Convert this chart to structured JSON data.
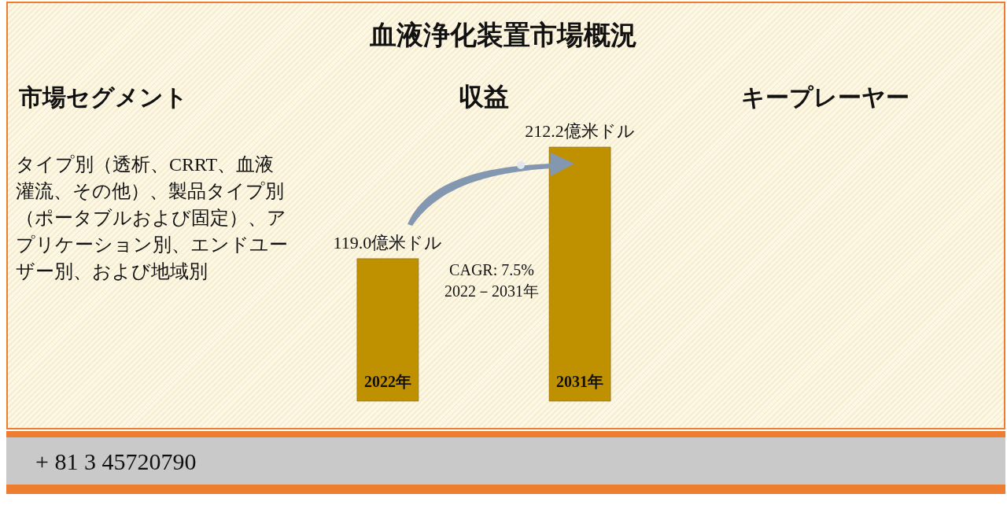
{
  "chart_data": {
    "type": "bar",
    "title": "血液浄化装置市場概況",
    "subtitle": "収益",
    "categories": [
      "2022年",
      "2031年"
    ],
    "values": [
      119.0,
      212.2
    ],
    "value_labels": [
      "119.0億米ドル",
      "212.2億米ドル"
    ],
    "color": "#bf9000",
    "annotations": [
      "市場セグメント",
      "タイプ別（透析、CRRT、血液灌流、その他）、製品タイプ別（ポータブルおよび固定）、アプリケーション別、エンドユーザー別、および地域別",
      "キープレーヤー",
      "CAGR: 7.5%\n2022－2031年",
      "+ 81 3 45720790"
    ]
  }
}
